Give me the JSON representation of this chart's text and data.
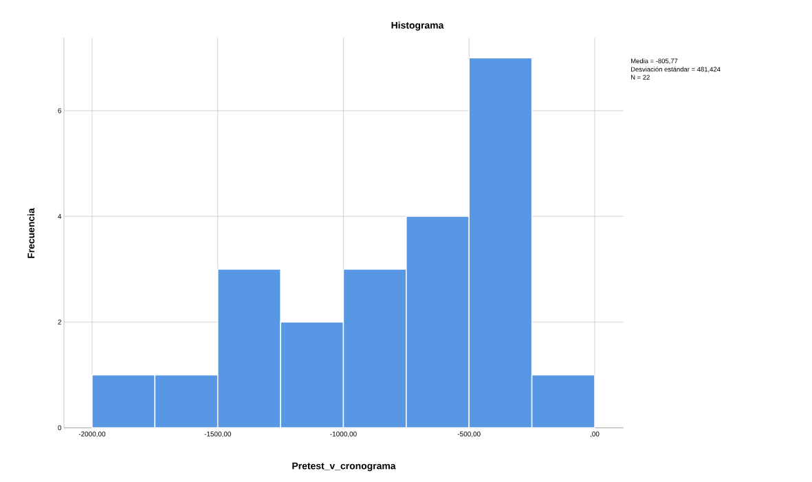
{
  "chart_data": {
    "type": "histogram",
    "title": "Histograma",
    "xlabel": "Pretest_v_cronograma",
    "ylabel": "Frecuencia",
    "bins": [
      -2000,
      -1750,
      -1500,
      -1250,
      -1000,
      -750,
      -500,
      -250,
      0
    ],
    "values": [
      1,
      1,
      3,
      2,
      3,
      4,
      7,
      1
    ],
    "color": "#5897e3",
    "xlim": [
      -2112,
      115
    ],
    "ylim": [
      0,
      7.38
    ],
    "xticks": [
      {
        "value": -2000,
        "label": "-2000,00"
      },
      {
        "value": -1500,
        "label": "-1500,00"
      },
      {
        "value": -1000,
        "label": "-1000,00"
      },
      {
        "value": -500,
        "label": "-500,00"
      },
      {
        "value": 0,
        "label": ",00"
      }
    ],
    "yticks": [
      0,
      2,
      4,
      6
    ],
    "grid": true,
    "annotations": [
      "Media = -805,77",
      "Desviación estándar = 481,424",
      "N = 22"
    ]
  }
}
